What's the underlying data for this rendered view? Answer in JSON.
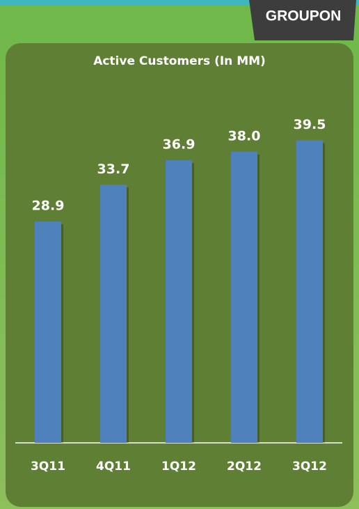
{
  "brand": "GROUPON",
  "chart_data": {
    "type": "bar",
    "title": "Active Customers (In MM)",
    "categories": [
      "3Q11",
      "4Q11",
      "1Q12",
      "2Q12",
      "3Q12"
    ],
    "values": [
      28.9,
      33.7,
      36.9,
      38.0,
      39.5
    ],
    "value_labels": [
      "28.9",
      "33.7",
      "36.9",
      "38.0",
      "39.5"
    ],
    "color": "#4f81bd",
    "ylim": [
      0,
      40
    ]
  }
}
